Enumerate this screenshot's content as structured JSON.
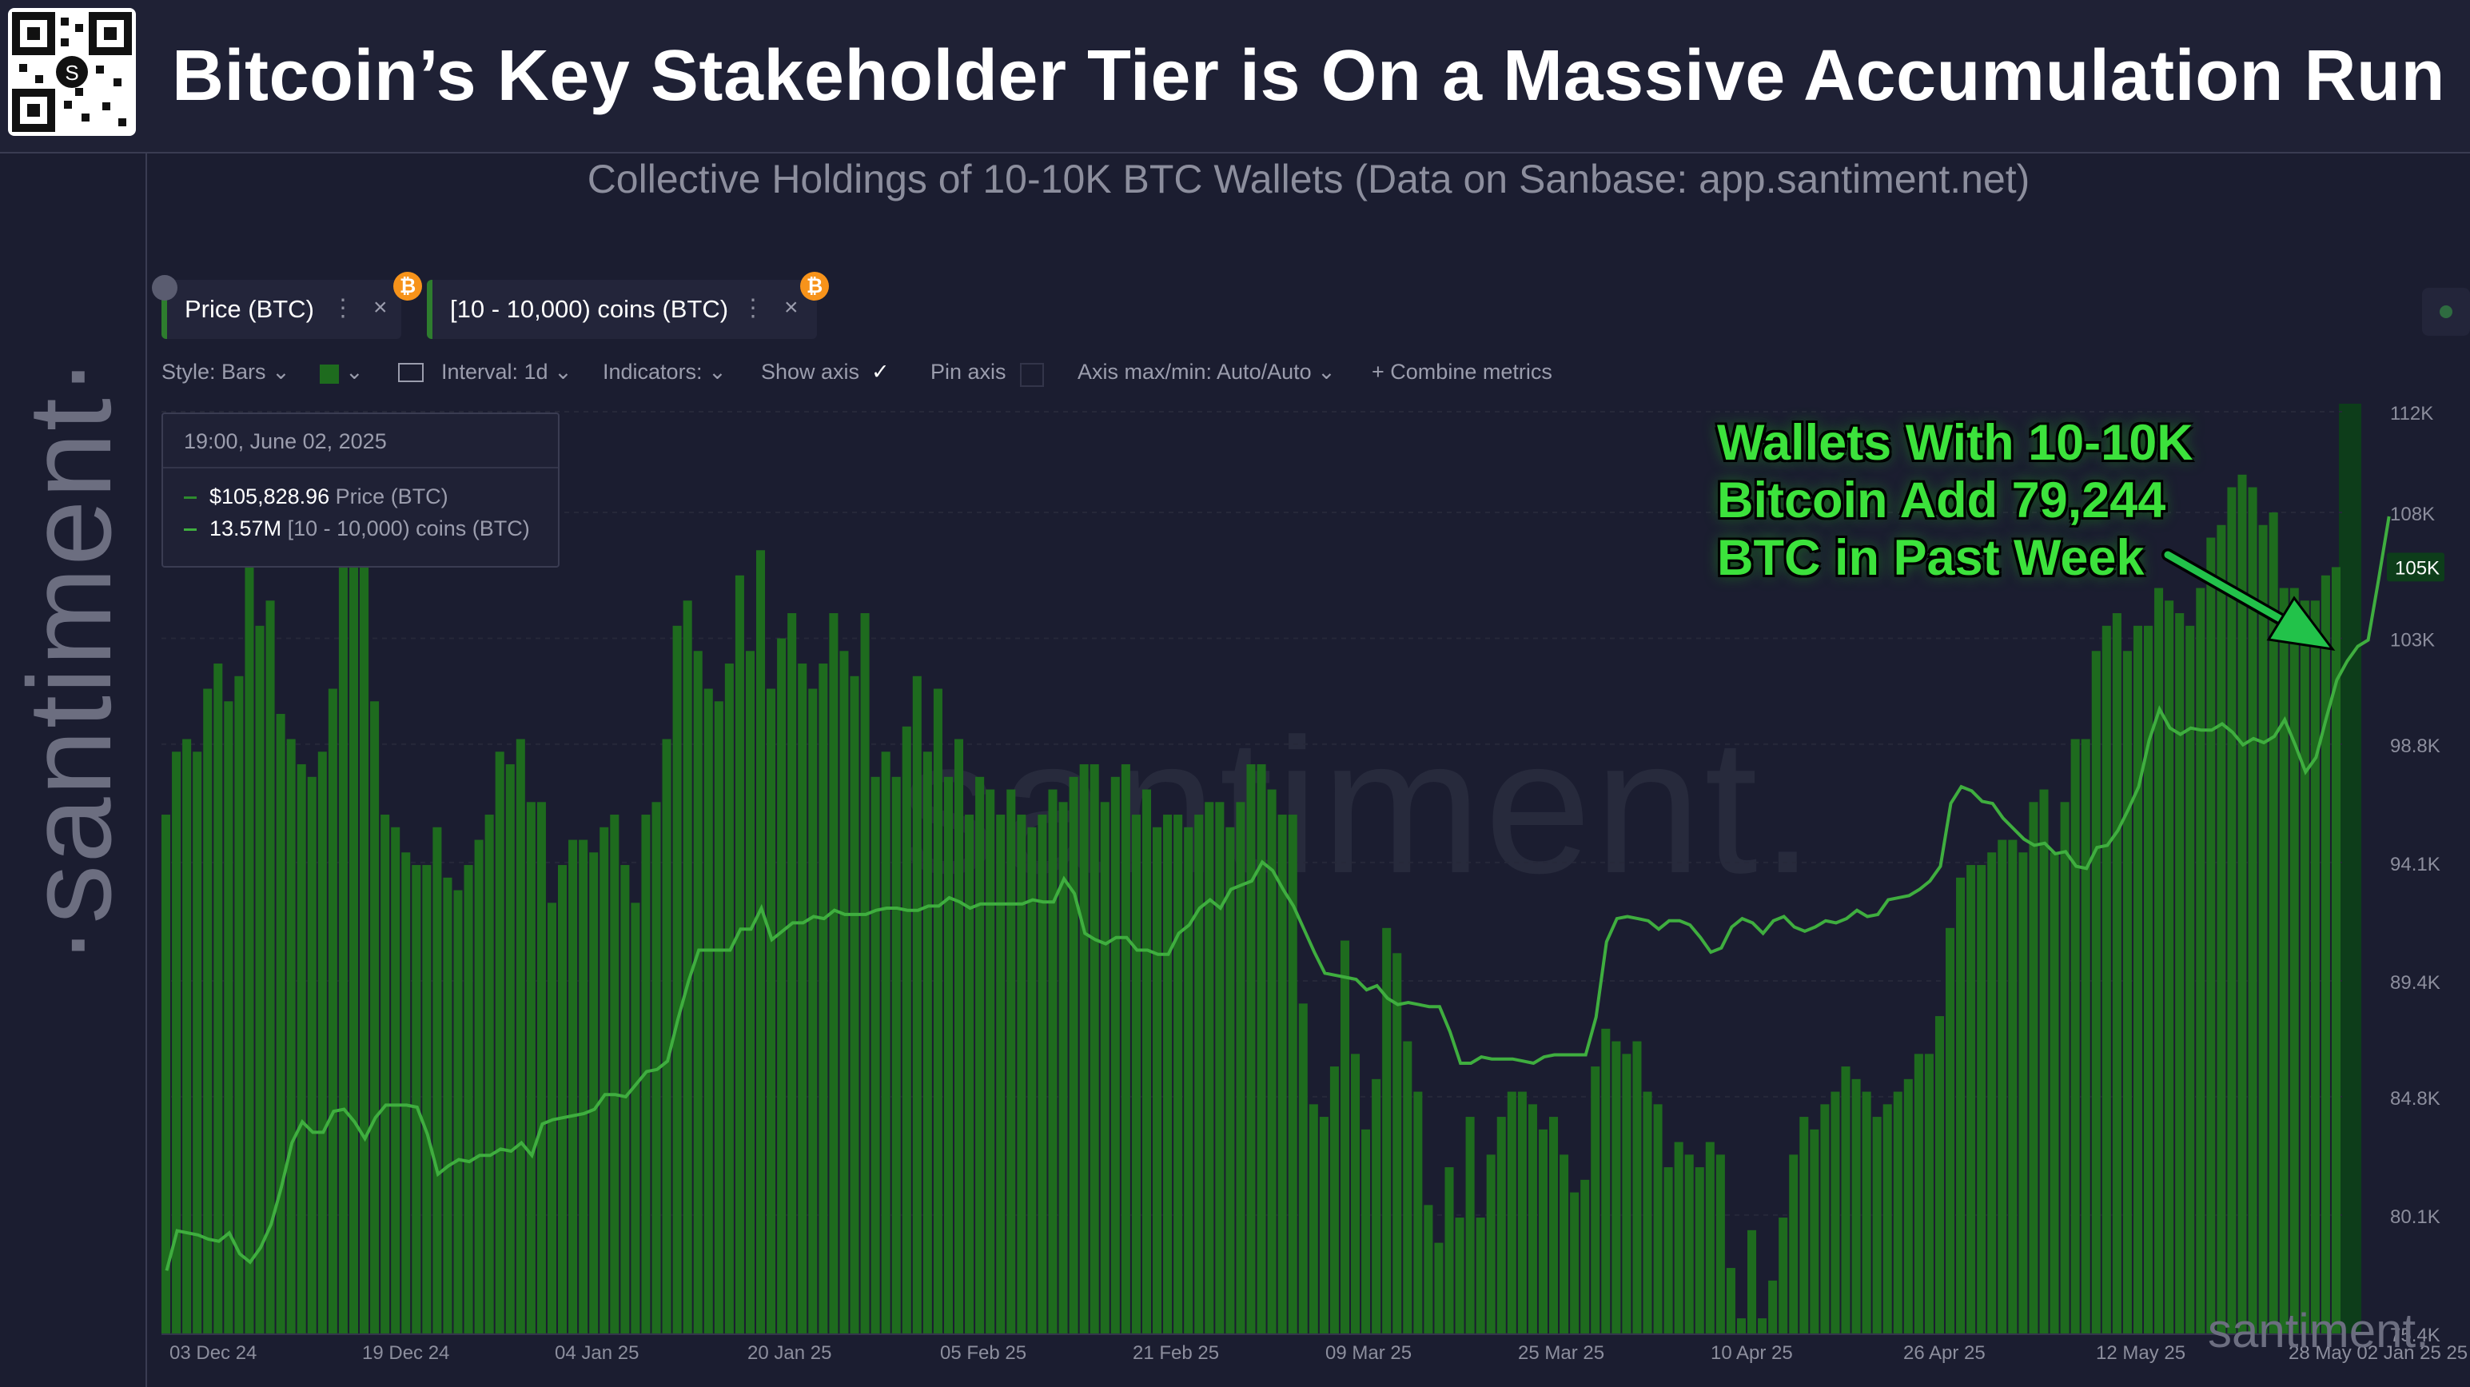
{
  "header": {
    "title": "Bitcoin’s Key Stakeholder Tier is On a Massive Accumulation Run"
  },
  "sidebar": {
    "brand": "·santiment·"
  },
  "subtitle": "Collective Holdings of 10-10K BTC Wallets (Data on Sanbase: app.santiment.net)",
  "metrics": [
    {
      "label": "Price (BTC)",
      "icon": "bitcoin-icon"
    },
    {
      "label": "[10 - 10,000) coins (BTC)",
      "icon": "bitcoin-icon"
    }
  ],
  "toolbar": {
    "style": "Style: Bars",
    "interval": "Interval: 1d",
    "indicators": "Indicators:",
    "show_axis": "Show axis",
    "pin_axis": "Pin axis",
    "axis_maxmin": "Axis max/min: Auto/Auto",
    "combine": "Combine metrics"
  },
  "tooltip": {
    "datetime": "19:00, June 02, 2025",
    "price_value": "$105,828.96",
    "price_label": "Price (BTC)",
    "holdings_value": "13.57M",
    "holdings_label": "[10 - 10,000) coins (BTC)"
  },
  "annotation": "Wallets With 10-10K\nBitcoin  Add 79,244\nBTC in Past Week",
  "watermark": "santiment.",
  "colors": {
    "bars": "#1e6b1e",
    "line": "#3fae3f",
    "background": "#1b1d30",
    "annotation": "#3ce23c",
    "arrow": "#22c24a",
    "highlight": "#0d3d1a"
  },
  "chart_data": {
    "type": "bar",
    "x_tick_labels": [
      "03 Dec 24",
      "19 Dec 24",
      "04 Jan 25",
      "20 Jan 25",
      "05 Feb 25",
      "21 Feb 25",
      "09 Mar 25",
      "25 Mar 25",
      "10 Apr 25",
      "26 Apr 25",
      "12 May 25",
      "28 May 02 Jan 25 25"
    ],
    "y_tick_labels": [
      "112K",
      "108K",
      "105K",
      "103K",
      "98.8K",
      "94.1K",
      "89.4K",
      "84.8K",
      "80.1K",
      "75.4K"
    ],
    "y_highlight_label": "105K",
    "ylim": [
      75400,
      112000
    ],
    "date_range": [
      "2024-12-03",
      "2025-06-02"
    ],
    "series": [
      {
        "name": "Price (BTC)",
        "type": "bar",
        "values": [
          96000,
          98500,
          99000,
          98500,
          101000,
          102000,
          100500,
          101500,
          106500,
          103500,
          104500,
          100000,
          99000,
          98000,
          97500,
          98500,
          101000,
          106500,
          107500,
          107500,
          100500,
          96000,
          95500,
          94500,
          94000,
          94000,
          95500,
          93500,
          93000,
          94000,
          95000,
          96000,
          98500,
          98000,
          99000,
          96500,
          96500,
          92500,
          94000,
          95000,
          95000,
          94500,
          95500,
          96000,
          94000,
          92500,
          96000,
          96500,
          99000,
          103500,
          104500,
          102500,
          101000,
          100500,
          102000,
          105500,
          102500,
          106500,
          101000,
          103000,
          104000,
          102000,
          101000,
          102000,
          104000,
          102500,
          101500,
          104000,
          97500,
          98500,
          97500,
          99500,
          101500,
          98500,
          101000,
          97500,
          99000,
          96000,
          97500,
          97000,
          96000,
          97000,
          96000,
          95500,
          96000,
          97000,
          96500,
          97500,
          98000,
          98000,
          96500,
          97500,
          98000,
          96000,
          97000,
          95500,
          96000,
          96000,
          95500,
          96000,
          96500,
          96500,
          95500,
          96500,
          98000,
          98000,
          97000,
          96000,
          96000,
          88500,
          84500,
          84000,
          86000,
          91000,
          86500,
          83500,
          85500,
          91500,
          90500,
          87000,
          85000,
          80500,
          79000,
          82000,
          80000,
          84000,
          80000,
          82500,
          84000,
          85000,
          85000,
          84500,
          83500,
          84000,
          82500,
          81000,
          81500,
          86000,
          87500,
          87000,
          86500,
          87000,
          85000,
          84500,
          82000,
          83000,
          82500,
          82000,
          83000,
          82500,
          78000,
          76000,
          79500,
          76000,
          77500,
          80000,
          82500,
          84000,
          83500,
          84500,
          85000,
          86000,
          85500,
          85000,
          84000,
          84500,
          85000,
          85500,
          86500,
          86500,
          88000,
          91500,
          93500,
          94000,
          94000,
          94500,
          95000,
          95000,
          94500,
          96500,
          97000,
          94500,
          96500,
          99000,
          99000,
          102500,
          103500,
          104000,
          102500,
          103500,
          103500,
          105000,
          104500,
          104000,
          103500,
          105000,
          107000,
          107500,
          109000,
          109500,
          109000,
          107500,
          108000,
          105000,
          105000,
          104500,
          104500,
          105500,
          105828.96
        ]
      },
      {
        "name": "[10 - 10,000) coins (BTC)",
        "type": "line",
        "axis_labels": "none",
        "values": [
          13.21,
          13.229,
          13.228,
          13.227,
          13.225,
          13.224,
          13.228,
          13.218,
          13.214,
          13.221,
          13.232,
          13.25,
          13.271,
          13.281,
          13.276,
          13.276,
          13.286,
          13.287,
          13.281,
          13.273,
          13.283,
          13.289,
          13.289,
          13.289,
          13.288,
          13.275,
          13.256,
          13.26,
          13.263,
          13.262,
          13.265,
          13.265,
          13.268,
          13.267,
          13.271,
          13.265,
          13.28,
          13.282,
          13.283,
          13.284,
          13.285,
          13.287,
          13.294,
          13.294,
          13.293,
          13.299,
          13.305,
          13.306,
          13.31,
          13.33,
          13.348,
          13.363,
          13.363,
          13.363,
          13.363,
          13.373,
          13.373,
          13.383,
          13.368,
          13.372,
          13.376,
          13.376,
          13.379,
          13.378,
          13.382,
          13.38,
          13.38,
          13.38,
          13.382,
          13.383,
          13.383,
          13.382,
          13.382,
          13.384,
          13.384,
          13.388,
          13.386,
          13.383,
          13.385,
          13.385,
          13.385,
          13.385,
          13.385,
          13.387,
          13.386,
          13.386,
          13.397,
          13.39,
          13.371,
          13.368,
          13.366,
          13.369,
          13.369,
          13.363,
          13.363,
          13.361,
          13.361,
          13.371,
          13.375,
          13.383,
          13.387,
          13.383,
          13.392,
          13.394,
          13.396,
          13.405,
          13.401,
          13.392,
          13.384,
          13.373,
          13.362,
          13.352,
          13.351,
          13.35,
          13.349,
          13.344,
          13.346,
          13.34,
          13.337,
          13.338,
          13.337,
          13.336,
          13.336,
          13.324,
          13.309,
          13.309,
          13.312,
          13.311,
          13.311,
          13.311,
          13.31,
          13.309,
          13.312,
          13.313,
          13.313,
          13.313,
          13.313,
          13.331,
          13.367,
          13.378,
          13.379,
          13.378,
          13.377,
          13.373,
          13.377,
          13.377,
          13.375,
          13.369,
          13.362,
          13.364,
          13.374,
          13.378,
          13.376,
          13.371,
          13.377,
          13.379,
          13.374,
          13.372,
          13.374,
          13.377,
          13.376,
          13.378,
          13.382,
          13.379,
          13.38,
          13.387,
          13.388,
          13.389,
          13.392,
          13.396,
          13.403,
          13.433,
          13.441,
          13.439,
          13.434,
          13.433,
          13.426,
          13.421,
          13.416,
          13.413,
          13.414,
          13.409,
          13.41,
          13.403,
          13.402,
          13.412,
          13.413,
          13.42,
          13.43,
          13.441,
          13.463,
          13.478,
          13.469,
          13.466,
          13.469,
          13.468,
          13.468,
          13.471,
          13.467,
          13.461,
          13.464,
          13.462,
          13.465,
          13.473,
          13.461,
          13.448,
          13.455,
          13.474,
          13.492,
          13.501,
          13.508,
          13.511,
          13.54,
          13.57
        ]
      }
    ]
  }
}
